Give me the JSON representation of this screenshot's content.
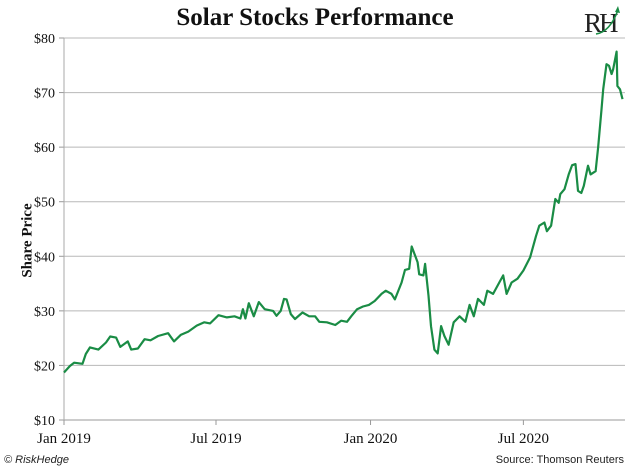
{
  "chart_data": {
    "type": "line",
    "title": "Solar Stocks Performance",
    "xlabel": "",
    "ylabel": "Share Price",
    "ylim": [
      10,
      80
    ],
    "xlim": [
      "2019-01-01",
      "2020-10-30"
    ],
    "grid": true,
    "y_ticks": [
      "$10",
      "$20",
      "$30",
      "$40",
      "$50",
      "$60",
      "$70",
      "$80"
    ],
    "y_tick_values": [
      10,
      20,
      30,
      40,
      50,
      60,
      70,
      80
    ],
    "x_ticks": [
      "Jan 2019",
      "Jul 2019",
      "Jan 2020",
      "Jul 2020"
    ],
    "x_tick_dates": [
      "2019-01-01",
      "2019-07-01",
      "2020-01-01",
      "2020-07-01"
    ],
    "line_color": "#1a8c45",
    "series": [
      {
        "points": [
          [
            "2019-01-01",
            18.7
          ],
          [
            "2019-01-08",
            19.9
          ],
          [
            "2019-01-13",
            20.5
          ],
          [
            "2019-01-23",
            20.3
          ],
          [
            "2019-01-27",
            22.1
          ],
          [
            "2019-02-01",
            23.3
          ],
          [
            "2019-02-11",
            22.9
          ],
          [
            "2019-02-20",
            24.2
          ],
          [
            "2019-02-25",
            25.3
          ],
          [
            "2019-03-04",
            25.1
          ],
          [
            "2019-03-09",
            23.4
          ],
          [
            "2019-03-18",
            24.4
          ],
          [
            "2019-03-22",
            22.9
          ],
          [
            "2019-03-30",
            23.1
          ],
          [
            "2019-04-07",
            24.8
          ],
          [
            "2019-04-14",
            24.6
          ],
          [
            "2019-04-23",
            25.4
          ],
          [
            "2019-05-05",
            25.9
          ],
          [
            "2019-05-12",
            24.4
          ],
          [
            "2019-05-20",
            25.6
          ],
          [
            "2019-05-29",
            26.2
          ],
          [
            "2019-06-08",
            27.3
          ],
          [
            "2019-06-17",
            27.9
          ],
          [
            "2019-06-24",
            27.7
          ],
          [
            "2019-07-04",
            29.2
          ],
          [
            "2019-07-14",
            28.8
          ],
          [
            "2019-07-23",
            29.0
          ],
          [
            "2019-07-30",
            28.6
          ],
          [
            "2019-08-02",
            30.3
          ],
          [
            "2019-08-05",
            28.6
          ],
          [
            "2019-08-09",
            31.4
          ],
          [
            "2019-08-15",
            29.0
          ],
          [
            "2019-08-21",
            31.6
          ],
          [
            "2019-08-28",
            30.3
          ],
          [
            "2019-09-07",
            30.0
          ],
          [
            "2019-09-11",
            29.1
          ],
          [
            "2019-09-16",
            30.0
          ],
          [
            "2019-09-20",
            32.2
          ],
          [
            "2019-09-23",
            32.1
          ],
          [
            "2019-09-28",
            29.4
          ],
          [
            "2019-10-03",
            28.5
          ],
          [
            "2019-10-12",
            29.7
          ],
          [
            "2019-10-20",
            29.0
          ],
          [
            "2019-10-27",
            29.0
          ],
          [
            "2019-11-01",
            28.0
          ],
          [
            "2019-11-10",
            27.9
          ],
          [
            "2019-11-20",
            27.4
          ],
          [
            "2019-11-27",
            28.2
          ],
          [
            "2019-12-04",
            28.0
          ],
          [
            "2019-12-09",
            29.0
          ],
          [
            "2019-12-16",
            30.3
          ],
          [
            "2019-12-23",
            30.8
          ],
          [
            "2019-12-30",
            31.1
          ],
          [
            "2020-01-06",
            31.8
          ],
          [
            "2020-01-14",
            33.1
          ],
          [
            "2020-01-19",
            33.7
          ],
          [
            "2020-01-26",
            33.1
          ],
          [
            "2020-01-30",
            32.1
          ],
          [
            "2020-02-07",
            35.2
          ],
          [
            "2020-02-11",
            37.5
          ],
          [
            "2020-02-16",
            37.7
          ],
          [
            "2020-02-19",
            41.8
          ],
          [
            "2020-02-26",
            38.9
          ],
          [
            "2020-02-28",
            36.7
          ],
          [
            "2020-03-04",
            36.5
          ],
          [
            "2020-03-06",
            38.6
          ],
          [
            "2020-03-10",
            32.8
          ],
          [
            "2020-03-13",
            27.2
          ],
          [
            "2020-03-17",
            22.9
          ],
          [
            "2020-03-21",
            22.2
          ],
          [
            "2020-03-25",
            27.2
          ],
          [
            "2020-03-29",
            25.4
          ],
          [
            "2020-04-03",
            23.8
          ],
          [
            "2020-04-09",
            27.9
          ],
          [
            "2020-04-16",
            29.0
          ],
          [
            "2020-04-23",
            28.0
          ],
          [
            "2020-04-28",
            31.1
          ],
          [
            "2020-05-03",
            29.0
          ],
          [
            "2020-05-08",
            32.2
          ],
          [
            "2020-05-15",
            31.1
          ],
          [
            "2020-05-19",
            33.7
          ],
          [
            "2020-05-26",
            33.1
          ],
          [
            "2020-06-03",
            35.4
          ],
          [
            "2020-06-07",
            36.5
          ],
          [
            "2020-06-11",
            33.1
          ],
          [
            "2020-06-17",
            35.2
          ],
          [
            "2020-06-24",
            35.9
          ],
          [
            "2020-07-01",
            37.4
          ],
          [
            "2020-07-09",
            39.8
          ],
          [
            "2020-07-16",
            43.7
          ],
          [
            "2020-07-20",
            45.6
          ],
          [
            "2020-07-26",
            46.2
          ],
          [
            "2020-07-29",
            44.6
          ],
          [
            "2020-08-03",
            45.6
          ],
          [
            "2020-08-08",
            50.5
          ],
          [
            "2020-08-12",
            49.8
          ],
          [
            "2020-08-14",
            51.4
          ],
          [
            "2020-08-19",
            52.3
          ],
          [
            "2020-08-24",
            55.0
          ],
          [
            "2020-08-28",
            56.7
          ],
          [
            "2020-09-01",
            56.9
          ],
          [
            "2020-09-04",
            52.0
          ],
          [
            "2020-09-08",
            51.6
          ],
          [
            "2020-09-11",
            52.9
          ],
          [
            "2020-09-16",
            56.6
          ],
          [
            "2020-09-19",
            55.0
          ],
          [
            "2020-09-25",
            55.6
          ],
          [
            "2020-09-28",
            59.9
          ],
          [
            "2020-10-02",
            66.9
          ],
          [
            "2020-10-04",
            70.6
          ],
          [
            "2020-10-08",
            75.2
          ],
          [
            "2020-10-11",
            74.9
          ],
          [
            "2020-10-14",
            73.4
          ],
          [
            "2020-10-16",
            74.3
          ],
          [
            "2020-10-20",
            77.5
          ],
          [
            "2020-10-21",
            71.2
          ],
          [
            "2020-10-24",
            70.6
          ],
          [
            "2020-10-27",
            68.8
          ]
        ]
      }
    ]
  },
  "footer": {
    "credit": "© RiskHedge",
    "source": "Source: Thomson Reuters"
  },
  "logo": {
    "text": "RH",
    "accent": "#1a8c45"
  }
}
